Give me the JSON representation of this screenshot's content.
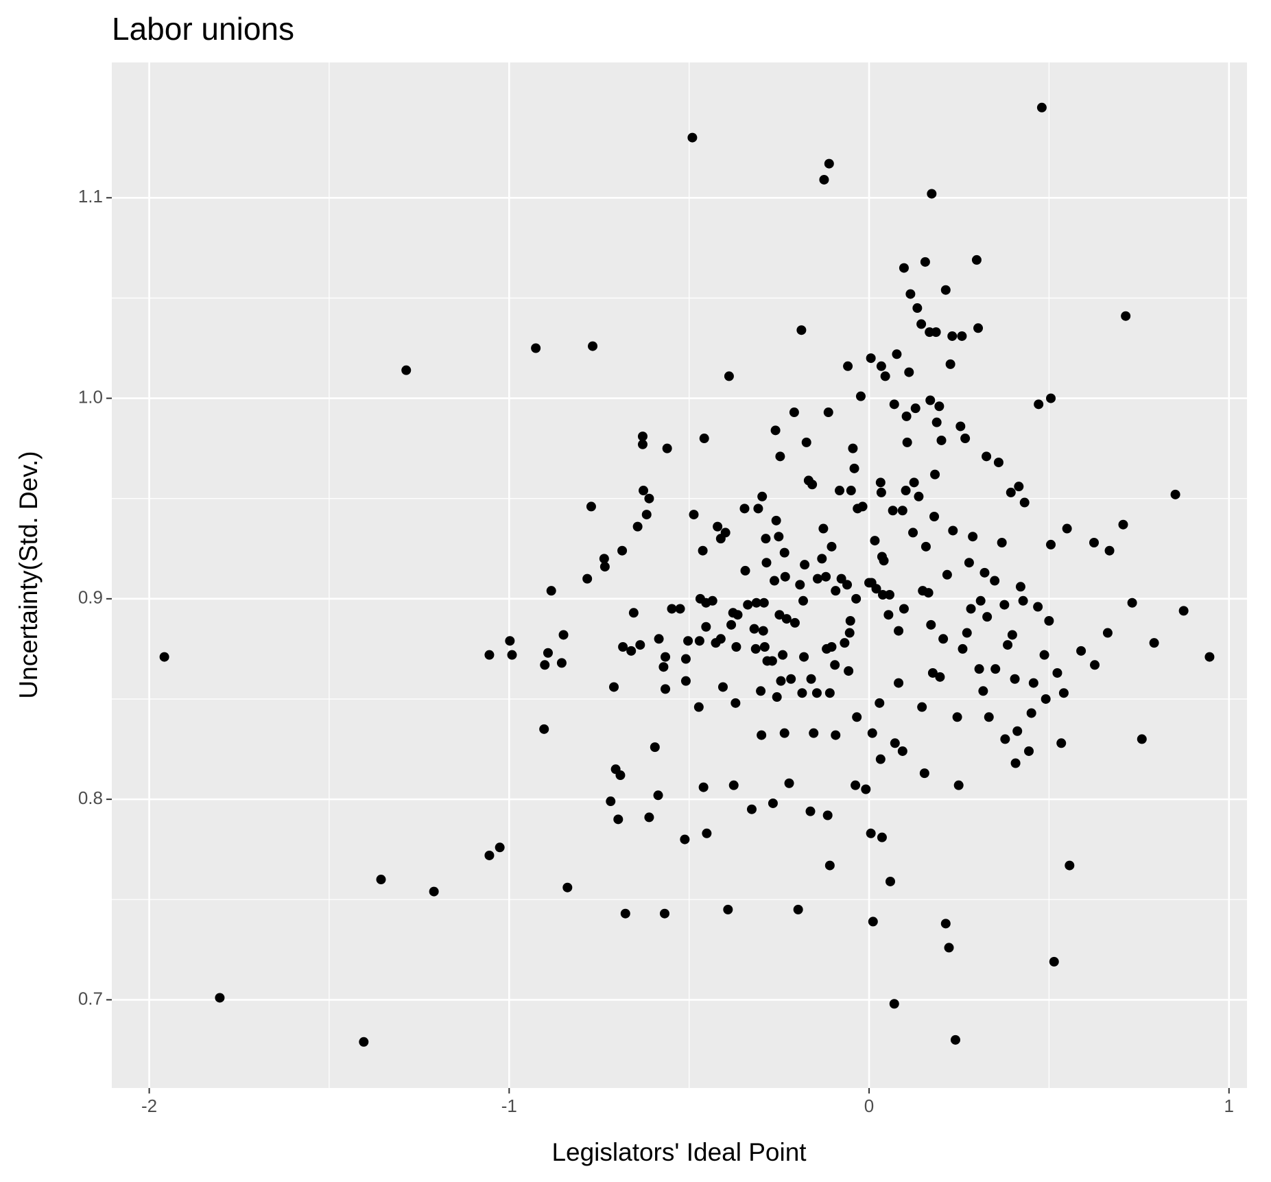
{
  "chart_data": {
    "type": "scatter",
    "title": "Labor unions",
    "x_label": "Legislators' Ideal Point",
    "y_label": "Uncertainty(Std. Dev.)",
    "xlim": [
      -2.104,
      1.05
    ],
    "ylim": [
      0.656,
      1.1675
    ],
    "xticks": [
      -2,
      -1,
      0,
      1
    ],
    "yticks": [
      0.7,
      0.8,
      0.9,
      {
        "value": 1.0,
        "label": "1.0"
      },
      1.1
    ],
    "grid": true,
    "color": "#000000",
    "x": [
      -1.958,
      -1.804,
      -1.404,
      -1.356,
      -1.286,
      -1.209,
      -1.055,
      -1.026,
      -1.055,
      -0.998,
      -0.992,
      -0.926,
      -0.903,
      -0.901,
      -0.892,
      -0.883,
      -0.854,
      -0.849,
      -0.838,
      -0.783,
      -0.772,
      -0.768,
      -0.736,
      -0.734,
      -0.718,
      -0.709,
      -0.704,
      -0.697,
      -0.691,
      -0.686,
      -0.684,
      -0.677,
      -0.661,
      -0.654,
      -0.643,
      -0.636,
      -0.629,
      -0.629,
      -0.627,
      -0.618,
      -0.611,
      -0.611,
      -0.595,
      -0.586,
      -0.584,
      -0.571,
      -0.568,
      -0.566,
      -0.566,
      -0.561,
      -0.548,
      -0.525,
      -0.512,
      -0.509,
      -0.509,
      -0.503,
      -0.491,
      -0.487,
      -0.473,
      -0.471,
      -0.469,
      -0.462,
      -0.46,
      -0.458,
      -0.453,
      -0.453,
      -0.451,
      -0.435,
      -0.426,
      -0.421,
      -0.412,
      -0.412,
      -0.406,
      -0.399,
      -0.392,
      -0.389,
      -0.383,
      -0.378,
      -0.376,
      -0.371,
      -0.369,
      -0.365,
      -0.346,
      -0.344,
      -0.337,
      -0.326,
      -0.319,
      -0.315,
      -0.313,
      -0.308,
      -0.301,
      -0.299,
      -0.297,
      -0.294,
      -0.292,
      -0.29,
      -0.287,
      -0.285,
      -0.283,
      -0.269,
      -0.267,
      -0.263,
      -0.26,
      -0.258,
      -0.256,
      -0.251,
      -0.249,
      -0.247,
      -0.245,
      -0.24,
      -0.235,
      -0.235,
      -0.233,
      -0.229,
      -0.222,
      -0.217,
      -0.208,
      -0.206,
      -0.197,
      -0.192,
      -0.188,
      -0.186,
      -0.183,
      -0.181,
      -0.179,
      -0.174,
      -0.168,
      -0.163,
      -0.161,
      -0.158,
      -0.154,
      -0.145,
      -0.143,
      -0.131,
      -0.127,
      -0.125,
      -0.12,
      -0.118,
      -0.115,
      -0.113,
      -0.111,
      -0.109,
      -0.109,
      -0.104,
      -0.104,
      -0.095,
      -0.093,
      -0.093,
      -0.082,
      -0.077,
      -0.068,
      -0.061,
      -0.059,
      -0.057,
      -0.054,
      -0.052,
      -0.05,
      -0.045,
      -0.041,
      -0.038,
      -0.036,
      -0.034,
      -0.032,
      -0.023,
      -0.018,
      -0.009,
      0.0,
      0.005,
      0.005,
      0.007,
      0.009,
      0.011,
      0.016,
      0.02,
      0.029,
      0.032,
      0.032,
      0.034,
      0.034,
      0.036,
      0.036,
      0.038,
      0.041,
      0.045,
      0.054,
      0.057,
      0.059,
      0.066,
      0.07,
      0.07,
      0.072,
      0.077,
      0.082,
      0.082,
      0.093,
      0.093,
      0.097,
      0.097,
      0.102,
      0.104,
      0.106,
      0.111,
      0.115,
      0.122,
      0.125,
      0.129,
      0.134,
      0.138,
      0.145,
      0.147,
      0.149,
      0.154,
      0.156,
      0.158,
      0.165,
      0.168,
      0.17,
      0.172,
      0.174,
      0.177,
      0.181,
      0.183,
      0.186,
      0.188,
      0.195,
      0.197,
      0.201,
      0.206,
      0.213,
      0.213,
      0.217,
      0.222,
      0.226,
      0.231,
      0.233,
      0.24,
      0.245,
      0.249,
      0.254,
      0.258,
      0.26,
      0.267,
      0.272,
      0.278,
      0.283,
      0.288,
      0.299,
      0.303,
      0.306,
      0.31,
      0.317,
      0.321,
      0.326,
      0.328,
      0.333,
      0.349,
      0.351,
      0.36,
      0.369,
      0.376,
      0.378,
      0.385,
      0.394,
      0.398,
      0.405,
      0.407,
      0.412,
      0.416,
      0.421,
      0.428,
      0.432,
      0.444,
      0.451,
      0.457,
      0.469,
      0.471,
      0.48,
      0.487,
      0.491,
      0.5,
      0.505,
      0.505,
      0.514,
      0.523,
      0.534,
      0.541,
      0.55,
      0.557,
      0.589,
      0.625,
      0.627,
      0.663,
      0.668,
      0.706,
      0.713,
      0.731,
      0.758,
      0.792,
      0.851,
      0.874,
      0.946
    ],
    "values": [
      0.871,
      0.701,
      0.679,
      0.76,
      1.014,
      0.754,
      0.772,
      0.776,
      0.872,
      0.879,
      0.872,
      1.025,
      0.835,
      0.867,
      0.873,
      0.904,
      0.868,
      0.882,
      0.756,
      0.91,
      0.946,
      1.026,
      0.92,
      0.916,
      0.799,
      0.856,
      0.815,
      0.79,
      0.812,
      0.924,
      0.876,
      0.743,
      0.874,
      0.893,
      0.936,
      0.877,
      0.981,
      0.977,
      0.954,
      0.942,
      0.95,
      0.791,
      0.826,
      0.802,
      0.88,
      0.866,
      0.743,
      0.855,
      0.871,
      0.975,
      0.895,
      0.895,
      0.78,
      0.859,
      0.87,
      0.879,
      1.13,
      0.942,
      0.846,
      0.879,
      0.9,
      0.924,
      0.806,
      0.98,
      0.886,
      0.898,
      0.783,
      0.899,
      0.878,
      0.936,
      0.93,
      0.88,
      0.856,
      0.933,
      0.745,
      1.011,
      0.887,
      0.893,
      0.807,
      0.848,
      0.876,
      0.892,
      0.945,
      0.914,
      0.897,
      0.795,
      0.885,
      0.875,
      0.898,
      0.945,
      0.854,
      0.832,
      0.951,
      0.884,
      0.898,
      0.876,
      0.93,
      0.918,
      0.869,
      0.869,
      0.798,
      0.909,
      0.984,
      0.939,
      0.851,
      0.931,
      0.892,
      0.971,
      0.859,
      0.872,
      0.833,
      0.923,
      0.911,
      0.89,
      0.808,
      0.86,
      0.993,
      0.888,
      0.745,
      0.907,
      1.034,
      0.853,
      0.899,
      0.871,
      0.917,
      0.978,
      0.959,
      0.794,
      0.86,
      0.957,
      0.833,
      0.853,
      0.91,
      0.92,
      0.935,
      1.109,
      0.911,
      0.875,
      0.792,
      0.993,
      1.117,
      0.767,
      0.853,
      0.876,
      0.926,
      0.867,
      0.832,
      0.904,
      0.954,
      0.91,
      0.878,
      0.907,
      1.016,
      0.864,
      0.883,
      0.889,
      0.954,
      0.975,
      0.965,
      0.807,
      0.9,
      0.841,
      0.945,
      1.001,
      0.946,
      0.805,
      0.908,
      0.783,
      1.02,
      0.908,
      0.833,
      0.739,
      0.929,
      0.905,
      0.848,
      0.958,
      0.82,
      0.953,
      1.016,
      0.781,
      0.921,
      0.902,
      0.919,
      1.011,
      0.892,
      0.902,
      0.759,
      0.944,
      0.698,
      0.997,
      0.828,
      1.022,
      0.884,
      0.858,
      0.824,
      0.944,
      1.065,
      0.895,
      0.954,
      0.991,
      0.978,
      1.013,
      1.052,
      0.933,
      0.958,
      0.995,
      1.045,
      0.951,
      1.037,
      0.846,
      0.904,
      0.813,
      1.068,
      0.926,
      0.903,
      1.033,
      0.999,
      0.887,
      1.102,
      0.863,
      0.941,
      0.962,
      1.033,
      0.988,
      0.996,
      0.861,
      0.979,
      0.88,
      1.054,
      0.738,
      0.912,
      0.726,
      1.017,
      1.031,
      0.934,
      0.68,
      0.841,
      0.807,
      0.986,
      1.031,
      0.875,
      0.98,
      0.883,
      0.918,
      0.895,
      0.931,
      1.069,
      1.035,
      0.865,
      0.899,
      0.854,
      0.913,
      0.971,
      0.891,
      0.841,
      0.909,
      0.865,
      0.968,
      0.928,
      0.897,
      0.83,
      0.877,
      0.953,
      0.882,
      0.86,
      0.818,
      0.834,
      0.956,
      0.906,
      0.899,
      0.948,
      0.824,
      0.843,
      0.858,
      0.896,
      0.997,
      1.145,
      0.872,
      0.85,
      0.889,
      1.0,
      0.927,
      0.719,
      0.863,
      0.828,
      0.853,
      0.935,
      0.767,
      0.874,
      0.928,
      0.867,
      0.883,
      0.924,
      0.937,
      1.041,
      0.898,
      0.83,
      0.878,
      0.952,
      0.894,
      0.871
    ]
  }
}
